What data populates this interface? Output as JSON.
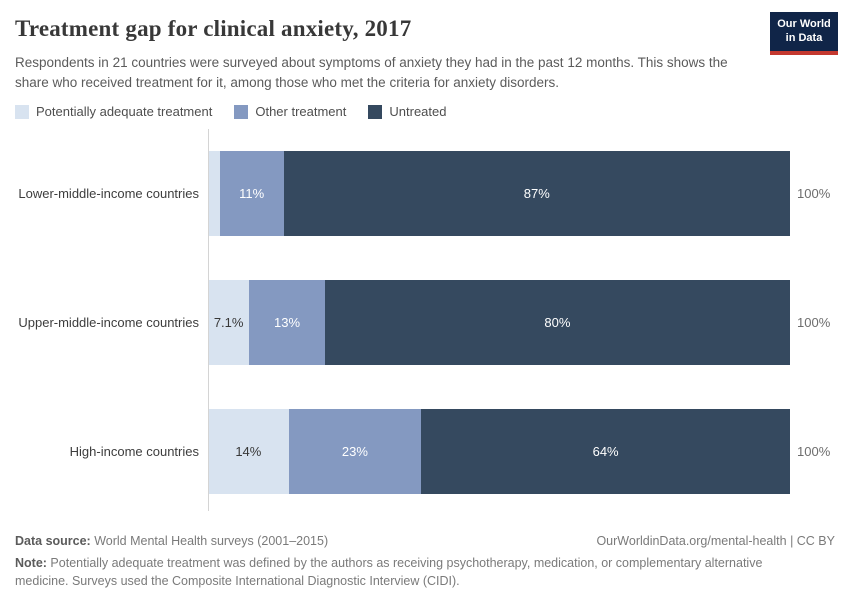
{
  "header": {
    "title": "Treatment gap for clinical anxiety, 2017",
    "subtitle": "Respondents in 21 countries were surveyed about symptoms of anxiety they had in the past 12 months. This shows the share who received treatment for it, among those who met the criteria for anxiety disorders.",
    "logo_line1": "Our World",
    "logo_line2": "in Data",
    "logo_bg_color": "#102548",
    "logo_accent_color": "#c4382f"
  },
  "legend": {
    "items": [
      {
        "label": "Potentially adequate treatment",
        "color": "#d8e3f0"
      },
      {
        "label": "Other treatment",
        "color": "#8499c1"
      },
      {
        "label": "Untreated",
        "color": "#35495f"
      }
    ]
  },
  "chart_data": {
    "type": "bar",
    "orientation": "horizontal",
    "stacked": true,
    "title": "Treatment gap for clinical anxiety, 2017",
    "categories": [
      "Lower-middle-income countries",
      "Upper-middle-income countries",
      "High-income countries"
    ],
    "series": [
      {
        "name": "Potentially adequate treatment",
        "color": "#d8e3f0",
        "label_color": "#383838",
        "values": [
          2,
          7.1,
          14
        ],
        "labels": [
          "",
          "7.1%",
          "14%"
        ]
      },
      {
        "name": "Other treatment",
        "color": "#8499c1",
        "label_color": "#ffffff",
        "values": [
          11,
          13,
          23
        ],
        "labels": [
          "11%",
          "13%",
          "23%"
        ]
      },
      {
        "name": "Untreated",
        "color": "#35495f",
        "label_color": "#ffffff",
        "values": [
          87,
          80,
          64
        ],
        "labels": [
          "87%",
          "80%",
          "64%"
        ]
      }
    ],
    "totals": [
      "100%",
      "100%",
      "100%"
    ],
    "xlim": [
      0,
      100
    ],
    "grid": false,
    "legend_position": "top"
  },
  "footer": {
    "data_source_label": "Data source:",
    "data_source_text": " World Mental Health surveys (2001–2015)",
    "attribution": "OurWorldinData.org/mental-health | CC BY",
    "note_label": "Note:",
    "note_text": " Potentially adequate treatment was defined by the authors as receiving psychotherapy, medication, or complementary alternative medicine. Surveys used the Composite International Diagnostic Interview (CIDI)."
  }
}
